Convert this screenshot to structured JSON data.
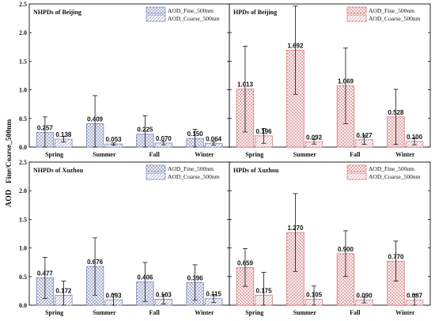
{
  "chart_data": {
    "type": "bar",
    "ylabel_main": "AOD",
    "ylabel_sub": "Fine/Coarse_500nm",
    "categories": [
      "Spring",
      "Summer",
      "Fall",
      "Winter"
    ],
    "ylim": [
      0,
      2.5
    ],
    "yticks": [
      "0.0",
      "0.5",
      "1.0",
      "1.5",
      "2.0",
      "2.5"
    ],
    "legend_position": "top-right",
    "colors": {
      "nhpd": "#7a86b8",
      "hpd": "#d9787c"
    },
    "panels": [
      {
        "title": "NHPDs of Beijing",
        "group": "nhpd",
        "series": [
          {
            "name": "AOD_Fine_500nm",
            "values": [
              0.257,
              0.409,
              0.225,
              0.15
            ],
            "labels": [
              "0.257",
              "0.409",
              "0.225",
              "0.150"
            ],
            "err": [
              0.27,
              0.49,
              0.32,
              0.16
            ]
          },
          {
            "name": "AOD_Coarse_500nm",
            "values": [
              0.138,
              0.053,
              0.07,
              0.064
            ],
            "labels": [
              "0.138",
              "0.053",
              "0.070",
              "0.064"
            ],
            "err": [
              0.05,
              0.02,
              0.03,
              0.03
            ]
          }
        ]
      },
      {
        "title": "HPDs of Beijing",
        "group": "hpd",
        "series": [
          {
            "name": "AOD_Fine_500nm",
            "values": [
              1.013,
              1.692,
              1.069,
              0.528
            ],
            "labels": [
              "1.013",
              "1.692",
              "1.069",
              "0.528"
            ],
            "err": [
              0.75,
              0.77,
              0.66,
              0.48
            ]
          },
          {
            "name": "AOD_Coarse_500nm",
            "values": [
              0.196,
              0.092,
              0.127,
              0.1
            ],
            "labels": [
              "0.196",
              "0.092",
              "0.127",
              "0.100"
            ],
            "err": [
              0.13,
              0.04,
              0.08,
              0.06
            ]
          }
        ]
      },
      {
        "title": "NHPDs of Xuzhou",
        "group": "nhpd",
        "series": [
          {
            "name": "AOD_Fine_500nm",
            "values": [
              0.477,
              0.676,
              0.406,
              0.396
            ],
            "labels": [
              "0.477",
              "0.676",
              "0.406",
              "0.396"
            ],
            "err": [
              0.36,
              0.5,
              0.34,
              0.31
            ]
          },
          {
            "name": "AOD_Coarse_500nm",
            "values": [
              0.172,
              0.093,
              0.103,
              0.115
            ],
            "labels": [
              "0.172",
              "0.093",
              "0.103",
              "0.115"
            ],
            "err": [
              0.25,
              0.1,
              0.08,
              0.07
            ]
          }
        ]
      },
      {
        "title": "HPDs of Xuzhou",
        "group": "hpd",
        "series": [
          {
            "name": "AOD_Fine_500nm",
            "values": [
              0.659,
              1.27,
              0.9,
              0.77
            ],
            "labels": [
              "0.659",
              "1.270",
              "0.900",
              "0.770"
            ],
            "err": [
              0.33,
              0.68,
              0.4,
              0.35
            ]
          },
          {
            "name": "AOD_Coarse_500nm",
            "values": [
              0.175,
              0.105,
              0.09,
              0.087
            ],
            "labels": [
              "0.175",
              "0.105",
              "0.090",
              "0.087"
            ],
            "err": [
              0.4,
              0.23,
              0.05,
              0.1
            ]
          }
        ]
      }
    ]
  }
}
